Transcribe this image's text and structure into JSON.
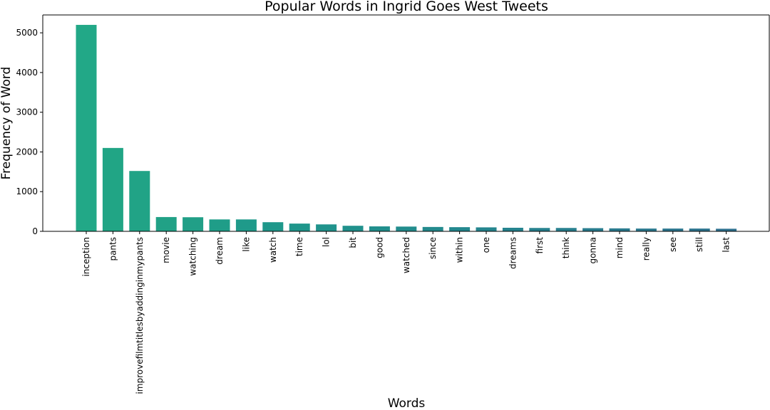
{
  "chart_data": {
    "type": "bar",
    "title": "Popular Words in Ingrid Goes West Tweets",
    "xlabel": "Words",
    "ylabel": "Frequency of Word",
    "ylim": [
      0,
      5450
    ],
    "yticks": [
      0,
      1000,
      2000,
      3000,
      4000,
      5000
    ],
    "grid": false,
    "categories": [
      "inception",
      "pants",
      "improvefilmtitlesbyaddinginmypants",
      "movie",
      "watching",
      "dream",
      "like",
      "watch",
      "time",
      "lol",
      "bit",
      "good",
      "watched",
      "since",
      "within",
      "one",
      "dreams",
      "first",
      "think",
      "gonna",
      "mind",
      "really",
      "see",
      "still",
      "last"
    ],
    "values": [
      5200,
      2100,
      1520,
      360,
      355,
      300,
      300,
      230,
      195,
      175,
      140,
      125,
      120,
      110,
      105,
      100,
      90,
      85,
      85,
      80,
      75,
      70,
      70,
      70,
      65
    ],
    "colors": [
      "#22a887",
      "#21a585",
      "#21a386",
      "#21a186",
      "#219f87",
      "#1f9d88",
      "#1f9a8a",
      "#1f988b",
      "#1f968b",
      "#20938c",
      "#20918c",
      "#218f8d",
      "#228c8d",
      "#238a8d",
      "#23888e",
      "#24858e",
      "#25838e",
      "#26818e",
      "#277f8e",
      "#287c8e",
      "#297a8e",
      "#2a788e",
      "#2b758e",
      "#2c738e",
      "#2d708e"
    ]
  }
}
